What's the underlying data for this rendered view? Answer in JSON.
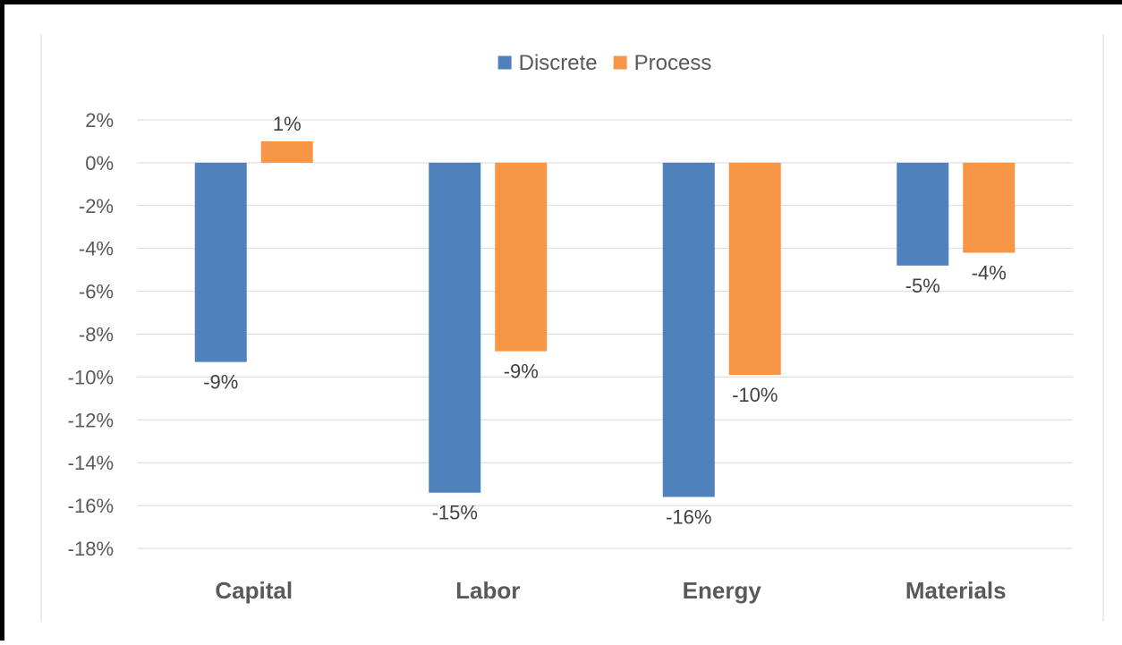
{
  "chart_data": {
    "type": "bar",
    "categories": [
      "Capital",
      "Labor",
      "Energy",
      "Materials"
    ],
    "series": [
      {
        "name": "Discrete",
        "color": "#4F81BD",
        "values": [
          -9.3,
          -15.4,
          -15.6,
          -4.8
        ],
        "labels": [
          "-9%",
          "-15%",
          "-16%",
          "-5%"
        ]
      },
      {
        "name": "Process",
        "color": "#F79646",
        "values": [
          1.0,
          -8.8,
          -9.9,
          -4.2
        ],
        "labels": [
          "1%",
          "-9%",
          "-10%",
          "-4%"
        ]
      }
    ],
    "ylim": [
      -18,
      2
    ],
    "yticks": [
      2,
      0,
      -2,
      -4,
      -6,
      -8,
      -10,
      -12,
      -14,
      -16,
      -18
    ],
    "ytick_labels": [
      "2%",
      "0%",
      "-2%",
      "-4%",
      "-6%",
      "-8%",
      "-10%",
      "-12%",
      "-14%",
      "-16%",
      "-18%"
    ],
    "grid": true,
    "legend_position": "top-center",
    "title": "",
    "xlabel": "",
    "ylabel": ""
  }
}
